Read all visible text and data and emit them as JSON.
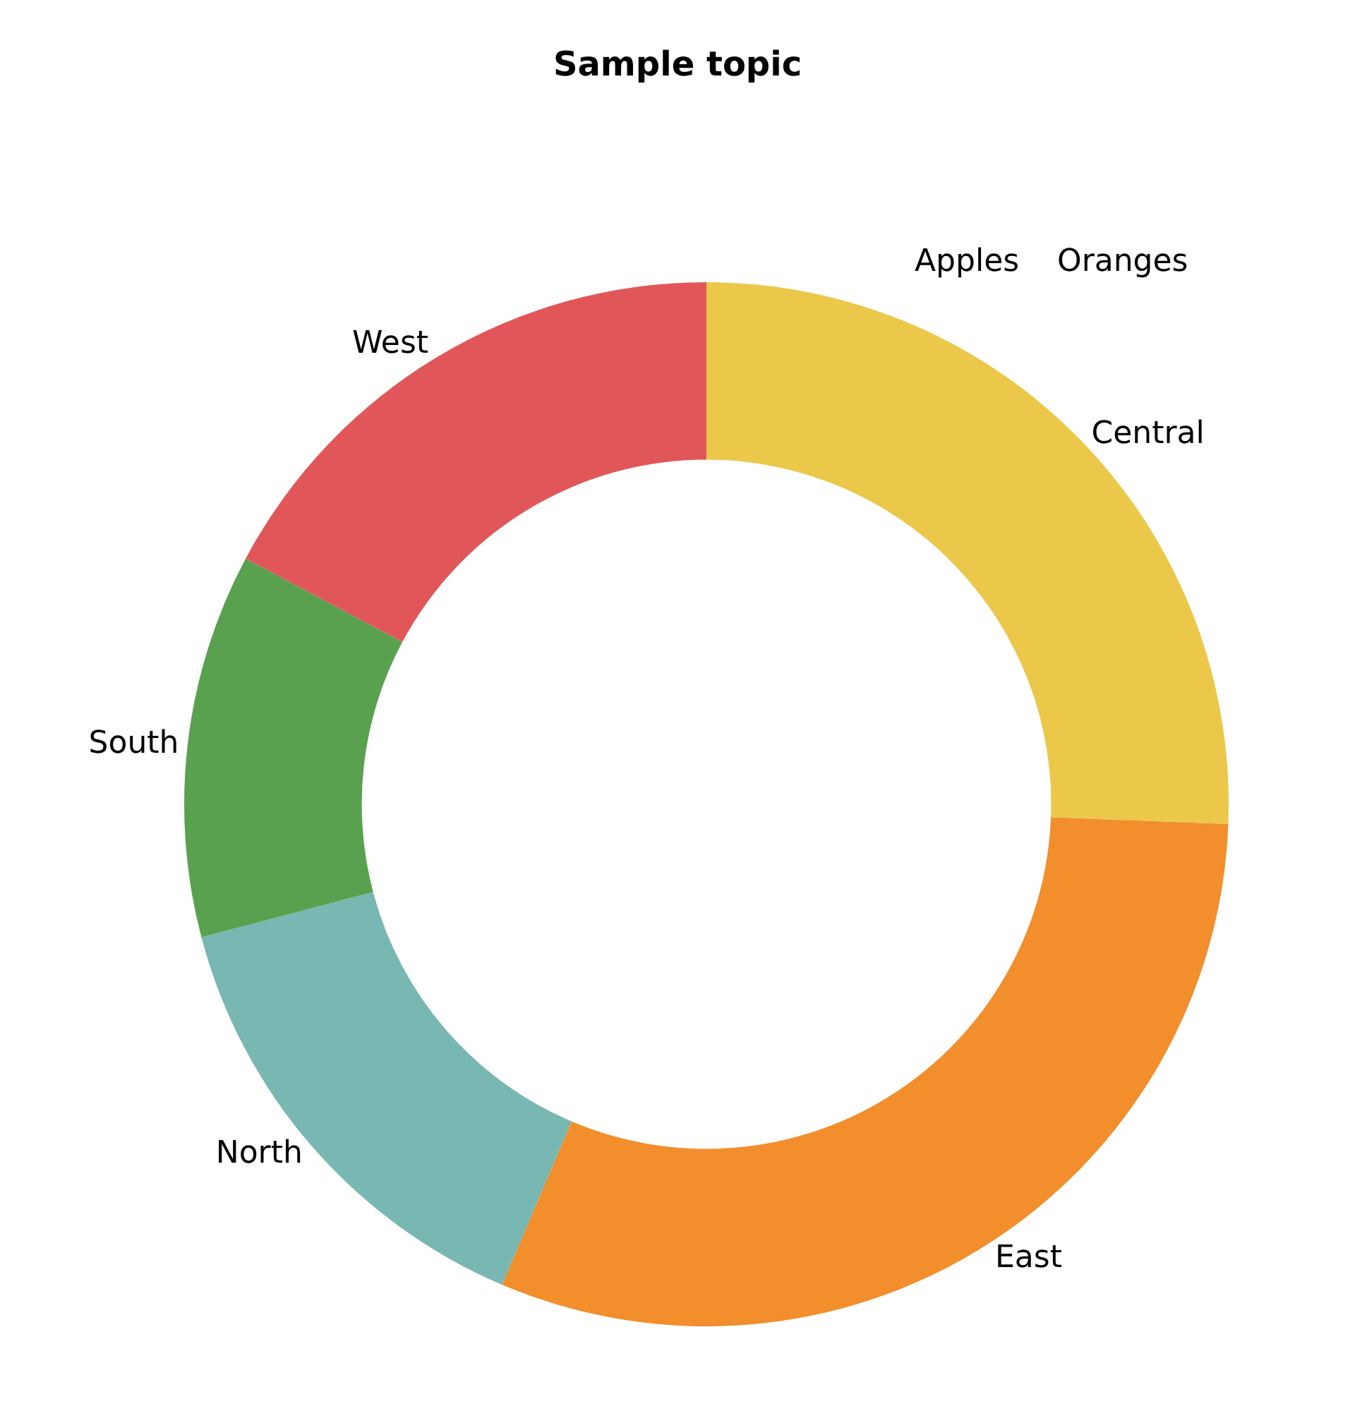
{
  "chart_data": {
    "type": "donut",
    "title": "Sample topic",
    "categories": [
      "Central",
      "East",
      "North",
      "South",
      "West"
    ],
    "values": [
      25.6,
      30.8,
      14.5,
      11.9,
      17.2
    ],
    "colors": [
      "#ebc84a",
      "#f28e2c",
      "#79b7b2",
      "#59a14f",
      "#e15759"
    ],
    "legend": false,
    "annotations": [
      "Apples",
      "Oranges"
    ]
  }
}
